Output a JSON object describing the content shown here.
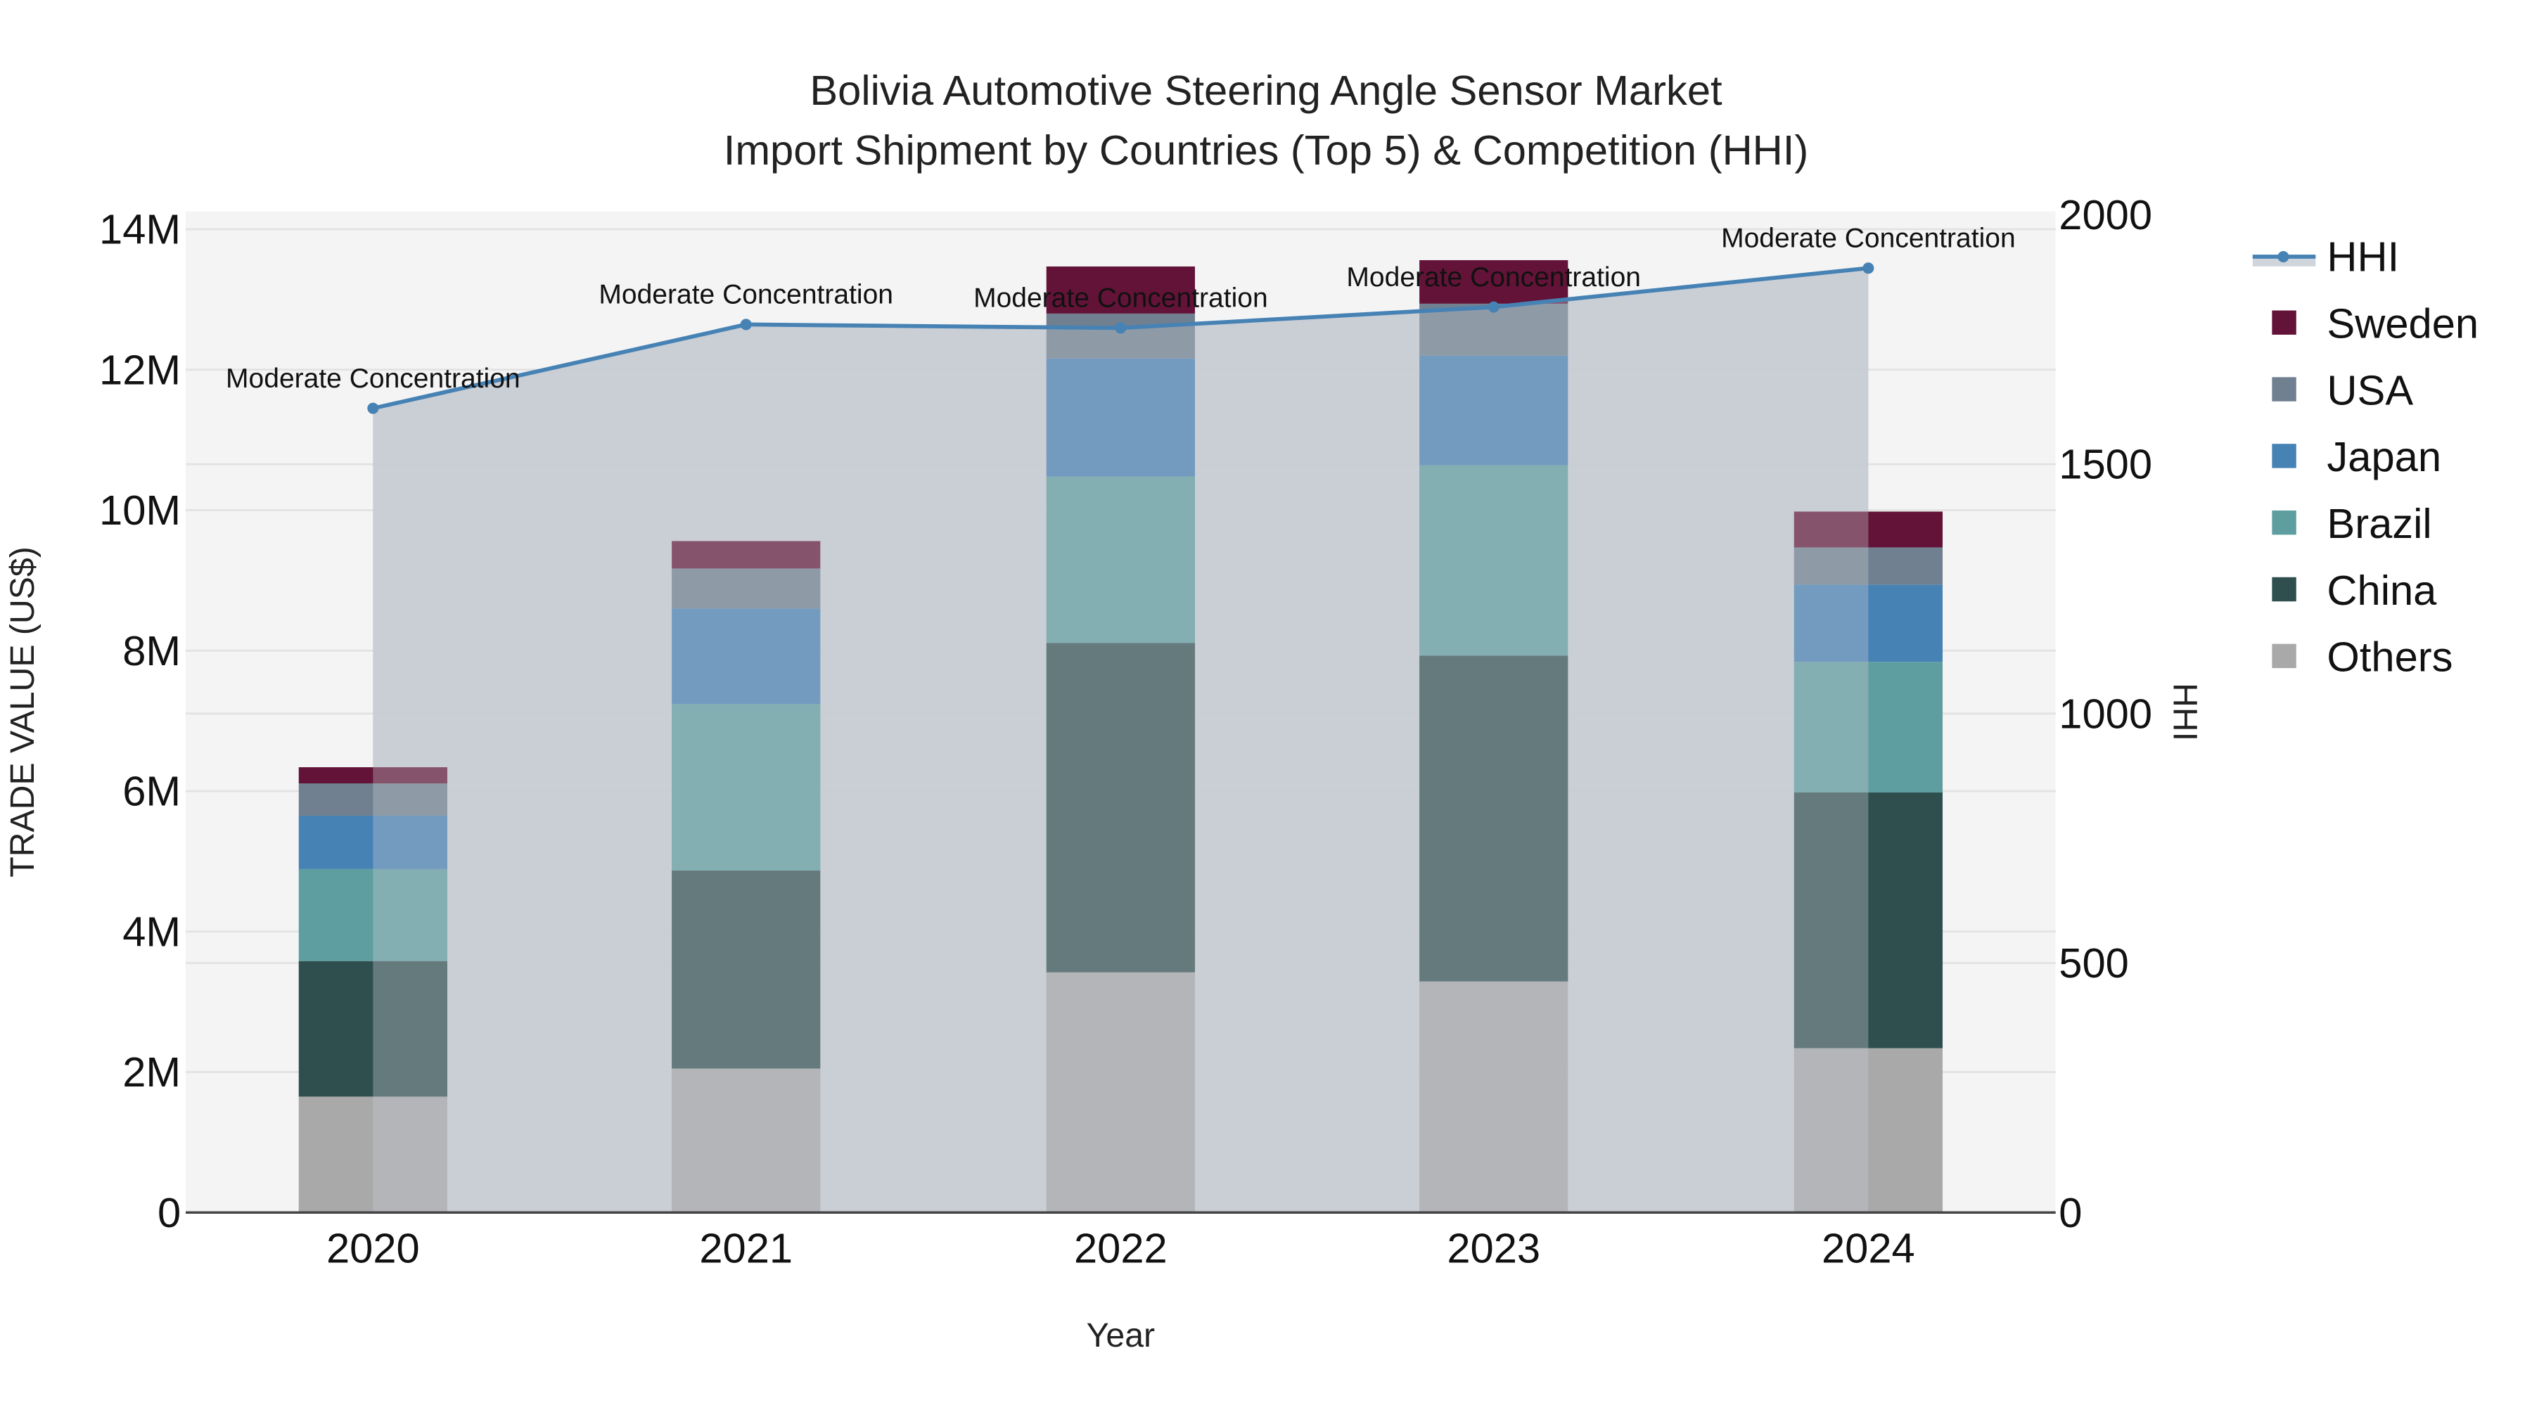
{
  "title_line1": "Bolivia Automotive Steering Angle Sensor Market",
  "title_line2": "Import Shipment by Countries (Top 5) & Competition (HHI)",
  "colors": {
    "Sweden": "#631337",
    "USA": "#708090",
    "Japan": "#4682b4",
    "Brazil": "#5f9ea0",
    "China": "#2f4f4f",
    "Others": "#a9a9a9",
    "HHI": "#4682b4",
    "hhi_fill": "#c8ccd4",
    "plot_bg": "#f4f4f4"
  },
  "chart_data": {
    "type": "bar",
    "stacked": true,
    "title": "Bolivia Automotive Steering Angle Sensor Market Import Shipment by Countries (Top 5) & Competition (HHI)",
    "xlabel": "Year",
    "ylabel": "TRADE VALUE (US$)",
    "y2label": "HHI",
    "categories": [
      "2020",
      "2021",
      "2022",
      "2023",
      "2024"
    ],
    "ylim": [
      0,
      14200000
    ],
    "y2lim": [
      0,
      2000
    ],
    "yticks": [
      "0",
      "2M",
      "4M",
      "6M",
      "8M",
      "10M",
      "12M",
      "14M"
    ],
    "y2ticks": [
      "0",
      "500",
      "1000",
      "1500",
      "2000"
    ],
    "series": [
      {
        "name": "Others",
        "values": [
          1650000,
          2050000,
          3420000,
          3290000,
          2340000
        ]
      },
      {
        "name": "China",
        "values": [
          1930000,
          2820000,
          4690000,
          4640000,
          3640000
        ]
      },
      {
        "name": "Brazil",
        "values": [
          1310000,
          2370000,
          2370000,
          2710000,
          1860000
        ]
      },
      {
        "name": "Japan",
        "values": [
          760000,
          1360000,
          1680000,
          1560000,
          1100000
        ]
      },
      {
        "name": "USA",
        "values": [
          460000,
          570000,
          640000,
          740000,
          530000
        ]
      },
      {
        "name": "Sweden",
        "values": [
          230000,
          390000,
          670000,
          620000,
          510000
        ]
      },
      {
        "name": "HHI",
        "type": "line+area",
        "axis": "y2",
        "values": [
          1612,
          1780,
          1773,
          1815,
          1893
        ]
      }
    ],
    "annotations": [
      "Moderate Concentration",
      "Moderate Concentration",
      "Moderate Concentration",
      "Moderate Concentration",
      "Moderate Concentration"
    ],
    "legend": [
      "HHI",
      "Sweden",
      "USA",
      "Japan",
      "Brazil",
      "China",
      "Others"
    ],
    "legend_position": "right",
    "grid": true
  }
}
